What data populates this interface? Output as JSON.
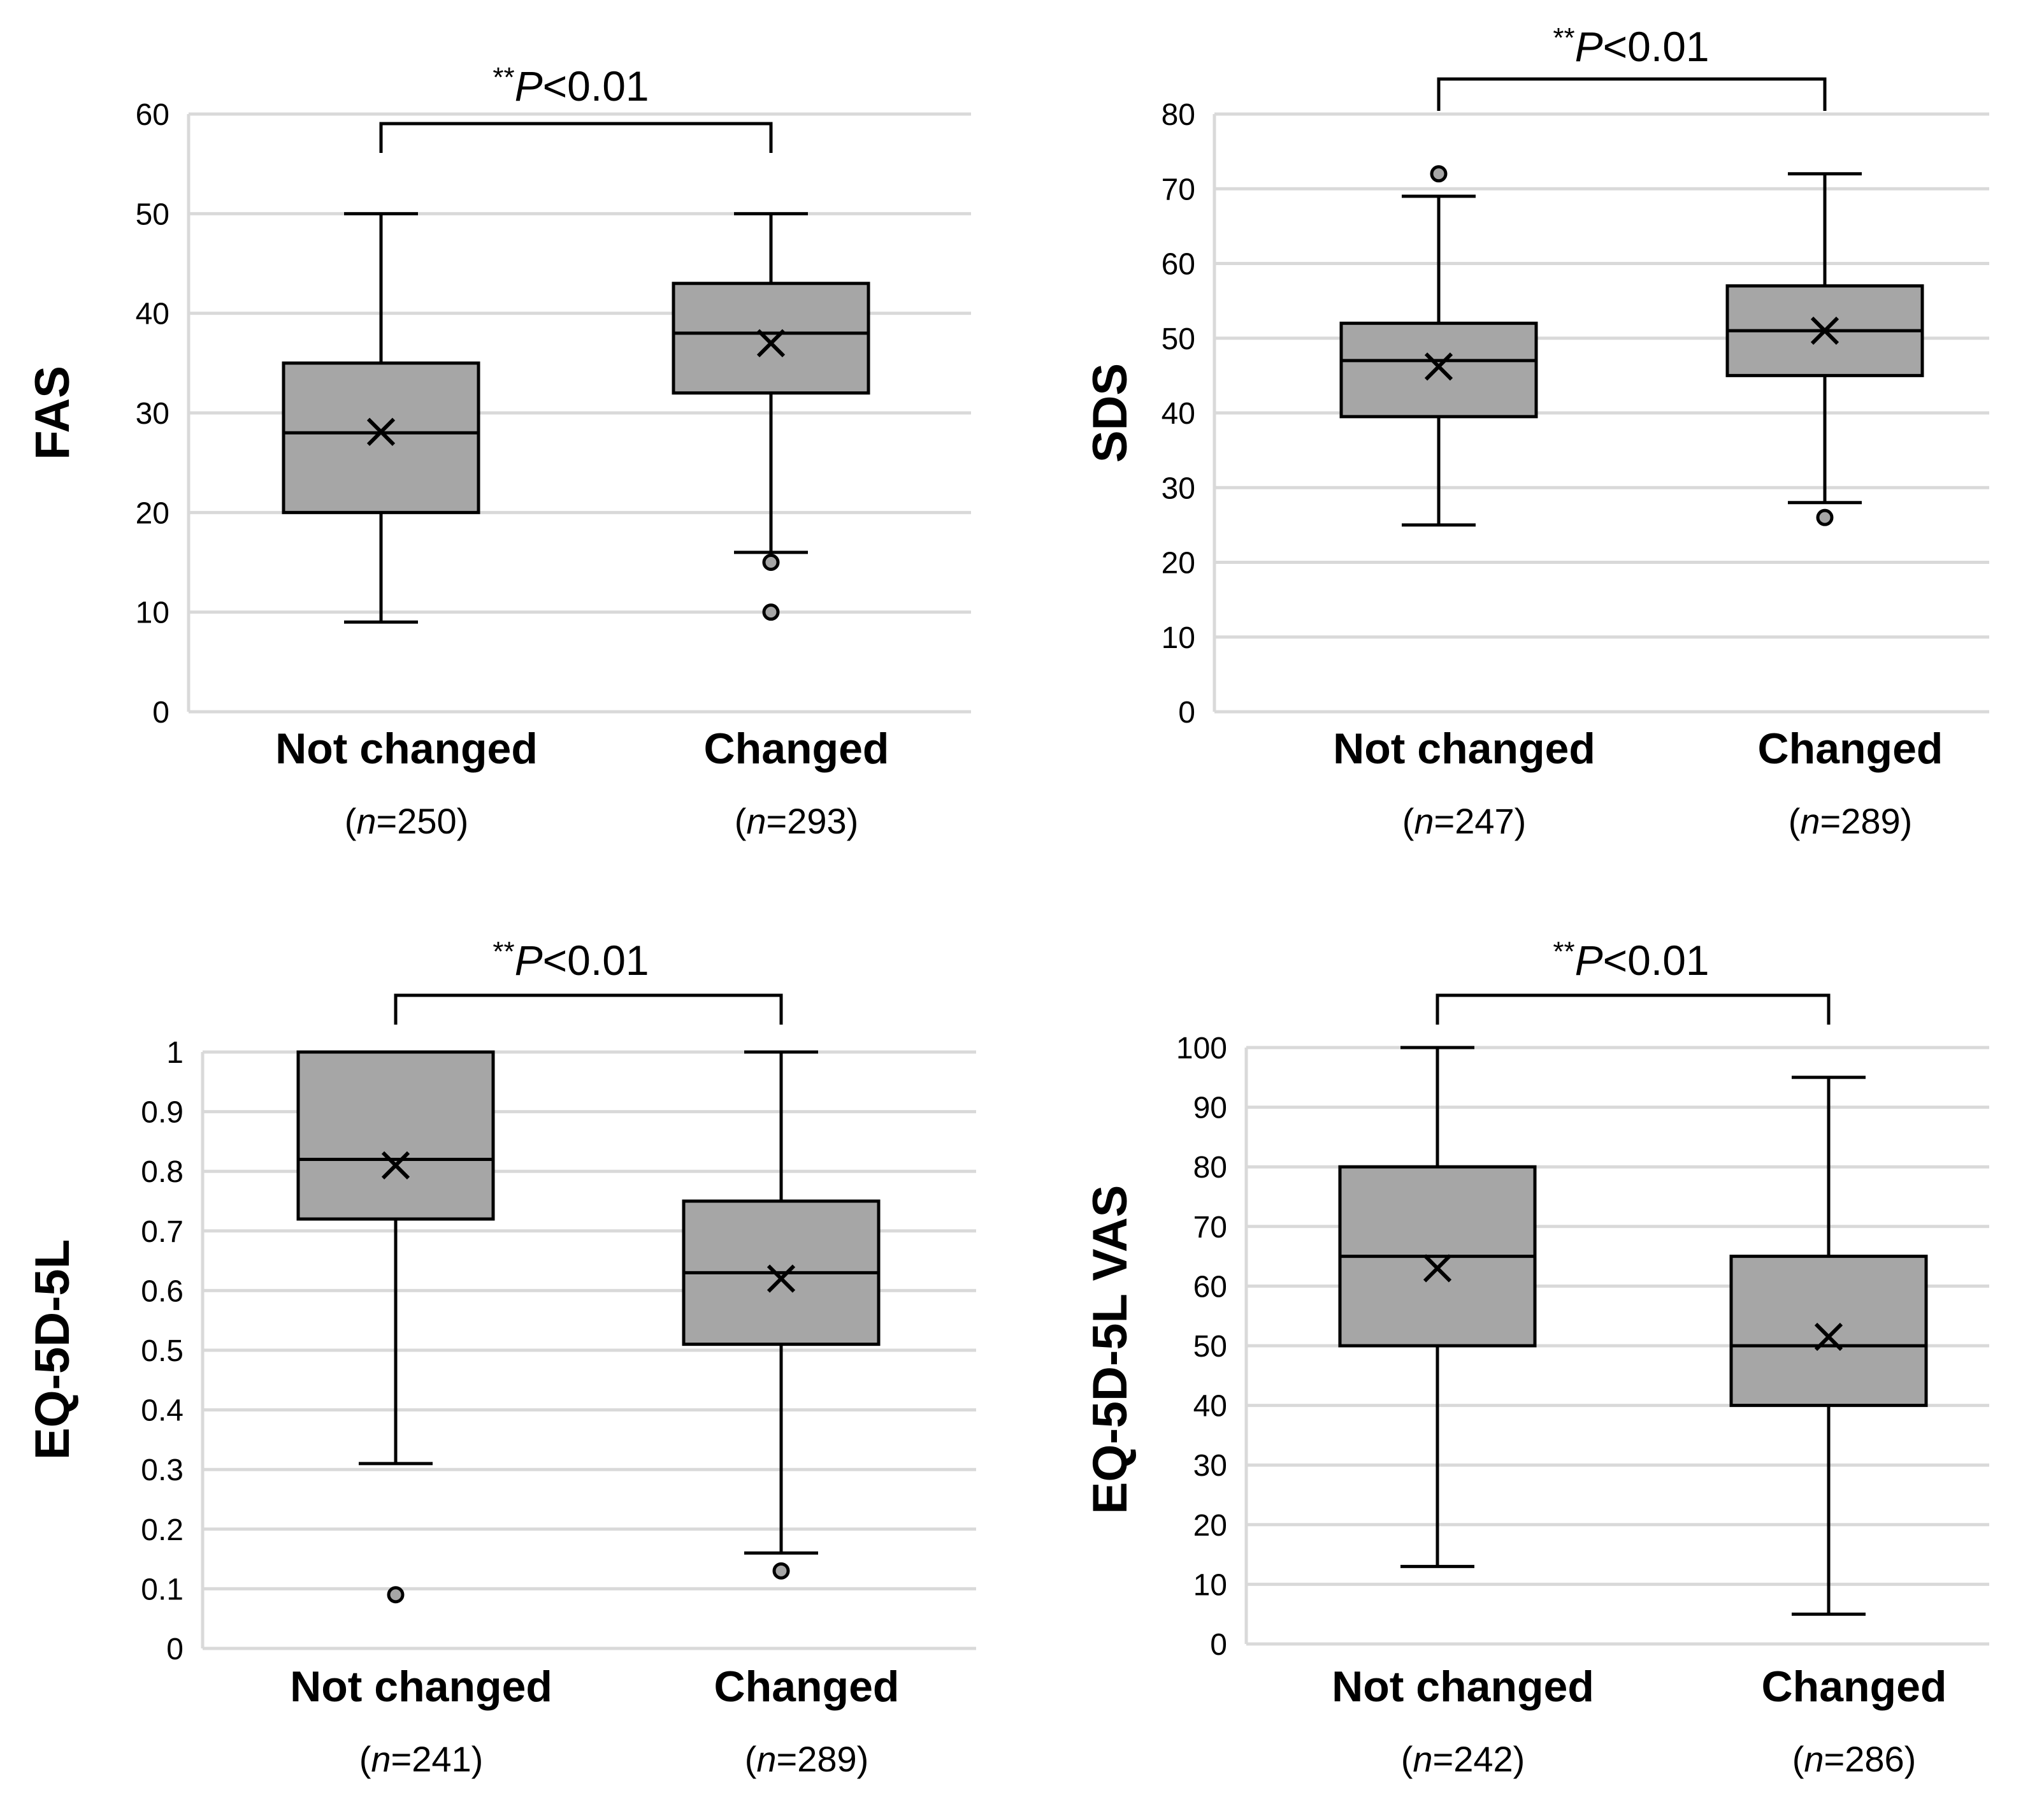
{
  "figure": {
    "type": "box-plot-panels",
    "box_color": "#A6A6A6",
    "grid_color": "#D9D9D9"
  },
  "chart_data": [
    {
      "type": "box",
      "ylabel": "FAS",
      "ylim": [
        0,
        60
      ],
      "yticks": [
        "0",
        "10",
        "20",
        "30",
        "40",
        "50",
        "60"
      ],
      "significance": {
        "stars": "**",
        "p_symbol": "P",
        "p_rest": "<0.01"
      },
      "groups": [
        {
          "name": "Not changed",
          "n_symbol": "n",
          "n_value": "=250",
          "min": 9,
          "q1": 20,
          "median": 28,
          "q3": 35,
          "max": 50,
          "mean": 28.1,
          "outliers": []
        },
        {
          "name": "Changed",
          "n_symbol": "n",
          "n_value": "=293",
          "min": 16,
          "q1": 32,
          "median": 38,
          "q3": 43,
          "max": 50,
          "mean": 37,
          "outliers": [
            15,
            10
          ]
        }
      ]
    },
    {
      "type": "box",
      "ylabel": "SDS",
      "ylim": [
        0,
        80
      ],
      "yticks": [
        "0",
        "10",
        "20",
        "30",
        "40",
        "50",
        "60",
        "70",
        "80"
      ],
      "significance": {
        "stars": "**",
        "p_symbol": "P",
        "p_rest": "<0.01"
      },
      "groups": [
        {
          "name": "Not changed",
          "n_symbol": "n",
          "n_value": "=247",
          "min": 25,
          "q1": 39.5,
          "median": 47,
          "q3": 52,
          "max": 69,
          "mean": 46.2,
          "outliers": [
            72
          ]
        },
        {
          "name": "Changed",
          "n_symbol": "n",
          "n_value": "=289",
          "min": 28,
          "q1": 45,
          "median": 51,
          "q3": 57,
          "max": 72,
          "mean": 51,
          "outliers": [
            26
          ]
        }
      ]
    },
    {
      "type": "box",
      "ylabel": "EQ-5D-5L",
      "ylim": [
        0,
        1
      ],
      "yticks": [
        "0",
        "0.1",
        "0.2",
        "0.3",
        "0.4",
        "0.5",
        "0.6",
        "0.7",
        "0.8",
        "0.9",
        "1"
      ],
      "significance": {
        "stars": "**",
        "p_symbol": "P",
        "p_rest": "<0.01"
      },
      "groups": [
        {
          "name": "Not changed",
          "n_symbol": "n",
          "n_value": "=241",
          "min": 0.31,
          "q1": 0.72,
          "median": 0.82,
          "q3": 1.0,
          "max": 1.0,
          "mean": 0.81,
          "outliers": [
            0.09
          ]
        },
        {
          "name": "Changed",
          "n_symbol": "n",
          "n_value": "=289",
          "min": 0.16,
          "q1": 0.51,
          "median": 0.63,
          "q3": 0.75,
          "max": 1.0,
          "mean": 0.62,
          "outliers": [
            0.13
          ]
        }
      ]
    },
    {
      "type": "box",
      "ylabel": "EQ-5D-5L VAS",
      "ylim": [
        0,
        100
      ],
      "yticks": [
        "0",
        "10",
        "20",
        "30",
        "40",
        "50",
        "60",
        "70",
        "80",
        "90",
        "100"
      ],
      "significance": {
        "stars": "**",
        "p_symbol": "P",
        "p_rest": "<0.01"
      },
      "groups": [
        {
          "name": "Not changed",
          "n_symbol": "n",
          "n_value": "=242",
          "min": 13,
          "q1": 50,
          "median": 65,
          "q3": 80,
          "max": 100,
          "mean": 63,
          "outliers": []
        },
        {
          "name": "Changed",
          "n_symbol": "n",
          "n_value": "=286",
          "min": 5,
          "q1": 40,
          "median": 50,
          "q3": 65,
          "max": 95,
          "mean": 51.5,
          "outliers": []
        }
      ]
    }
  ]
}
